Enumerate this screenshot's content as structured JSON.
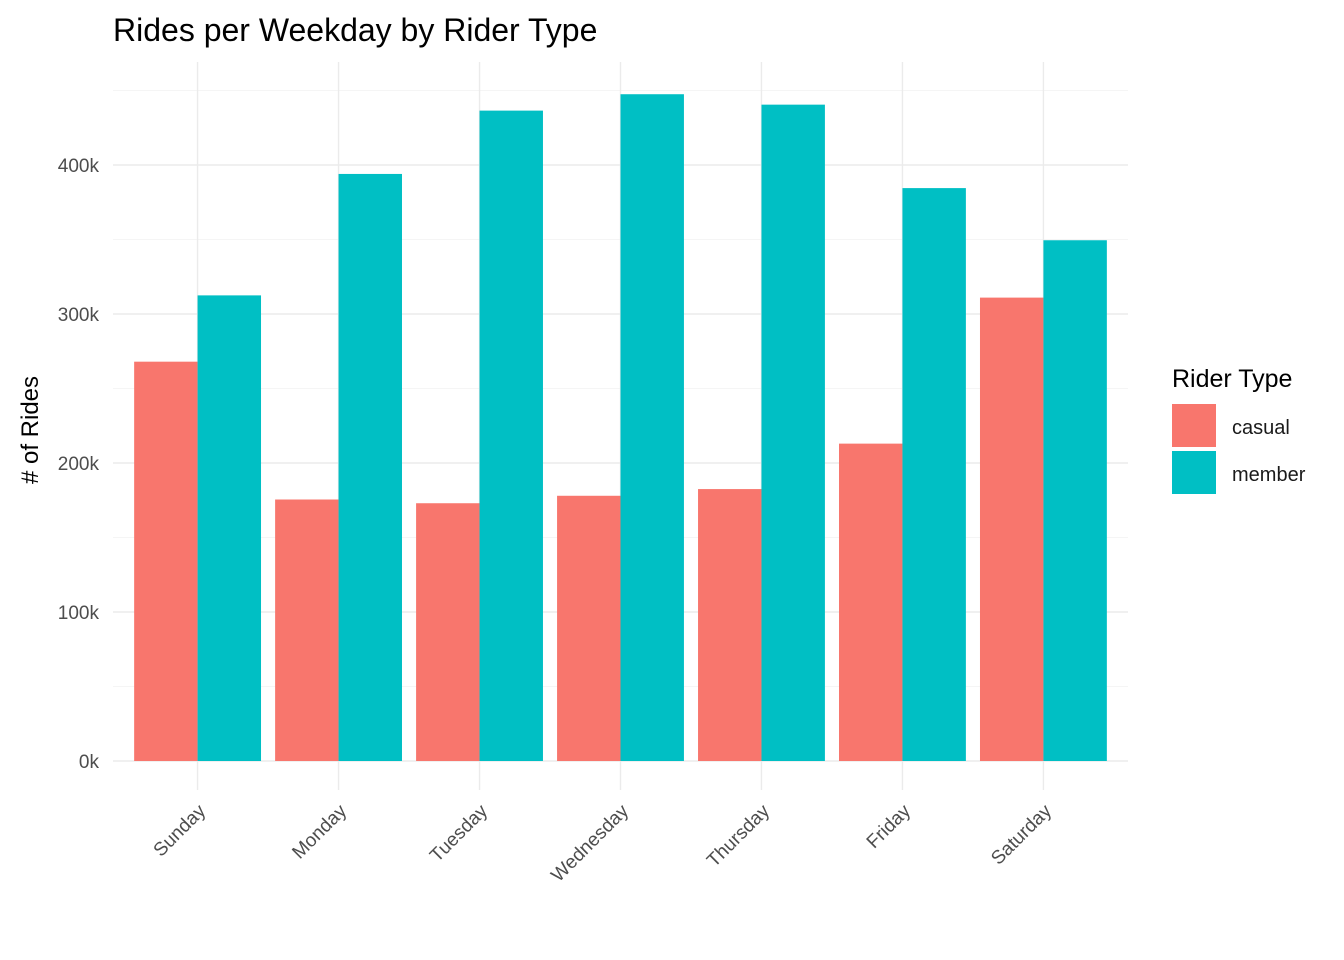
{
  "chart_data": {
    "type": "bar",
    "title": "Rides per Weekday by Rider Type",
    "xlabel": "",
    "ylabel": "# of Rides",
    "categories": [
      "Sunday",
      "Monday",
      "Tuesday",
      "Wednesday",
      "Thursday",
      "Friday",
      "Saturday"
    ],
    "series": [
      {
        "name": "casual",
        "color": "#F8766D",
        "values": [
          268000,
          175500,
          173000,
          178000,
          182500,
          213000,
          311000
        ]
      },
      {
        "name": "member",
        "color": "#00BFC4",
        "values": [
          312500,
          394000,
          436500,
          447500,
          440500,
          384500,
          349500
        ]
      }
    ],
    "ylim": [
      0,
      460000
    ],
    "y_ticks": [
      0,
      100000,
      200000,
      300000,
      400000
    ],
    "y_tick_labels": [
      "0k",
      "100k",
      "200k",
      "300k",
      "400k"
    ],
    "legend": {
      "title": "Rider Type",
      "position": "right"
    },
    "grid": true
  }
}
